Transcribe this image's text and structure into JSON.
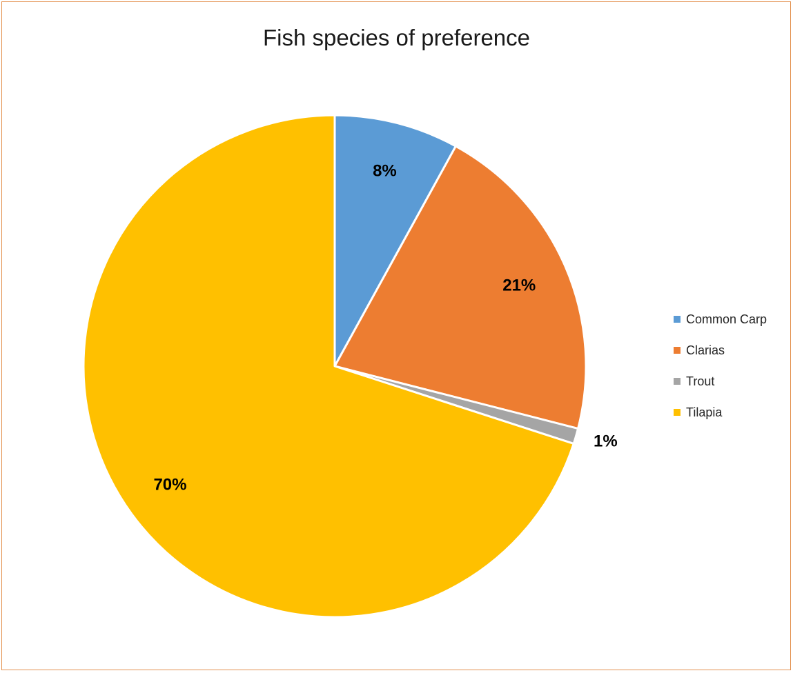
{
  "chart_data": {
    "type": "pie",
    "title": "Fish species of preference",
    "categories": [
      "Common Carp",
      "Clarias",
      "Trout",
      "Tilapia"
    ],
    "values": [
      8,
      21,
      1,
      70
    ],
    "data_labels": [
      "8%",
      "21%",
      "1%",
      "70%"
    ],
    "colors": [
      "#5b9bd5",
      "#ed7d31",
      "#a5a5a5",
      "#ffc000"
    ],
    "start_angle_deg": 0,
    "direction": "clockwise",
    "legend_position": "right"
  }
}
